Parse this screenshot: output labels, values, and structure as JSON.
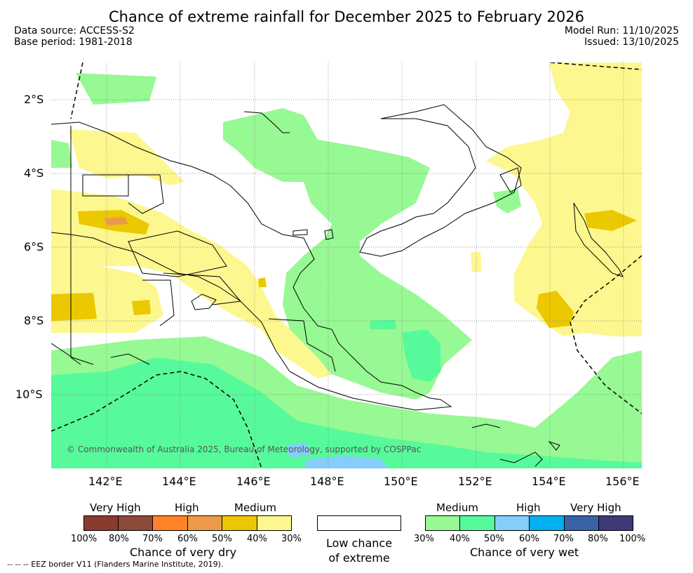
{
  "header": {
    "title": "Chance of extreme rainfall for December 2025 to February 2026",
    "data_source": "Data source: ACCESS-S2",
    "base_period": "Base period: 1981-2018",
    "model_run": "Model Run: 11/10/2025",
    "issued": "Issued: 13/10/2025"
  },
  "map": {
    "lat_labels": [
      "2°S",
      "4°S",
      "6°S",
      "8°S",
      "10°S"
    ],
    "lon_labels": [
      "142°E",
      "144°E",
      "146°E",
      "148°E",
      "150°E",
      "152°E",
      "154°E",
      "156°E"
    ],
    "copyright": "© Commonwealth of Australia 2025, Bureau of Meteorology, supported by COSPPac"
  },
  "legend": {
    "dry": {
      "levels": [
        "Very High",
        "High",
        "Medium"
      ],
      "colors": [
        "#8b3a2f",
        "#8c4a3a",
        "#ff8228",
        "#ec9a4a",
        "#ecc800",
        "#fdf78f"
      ],
      "ticks": [
        "100%",
        "80%",
        "70%",
        "60%",
        "50%",
        "40%",
        "30%"
      ],
      "caption": "Chance of very dry"
    },
    "none": {
      "caption_line1": "Low chance",
      "caption_line2": "of extreme"
    },
    "wet": {
      "levels": [
        "Medium",
        "High",
        "Very High"
      ],
      "colors": [
        "#97f993",
        "#56fa9b",
        "#85cdfb",
        "#00b0ef",
        "#3a62a6",
        "#3e3a78"
      ],
      "ticks": [
        "30%",
        "40%",
        "50%",
        "60%",
        "70%",
        "80%",
        "100%"
      ],
      "caption": "Chance of very wet"
    }
  },
  "footnote": "--  --  -- EEZ border V11 (Flanders Marine Institute, 2019)."
}
